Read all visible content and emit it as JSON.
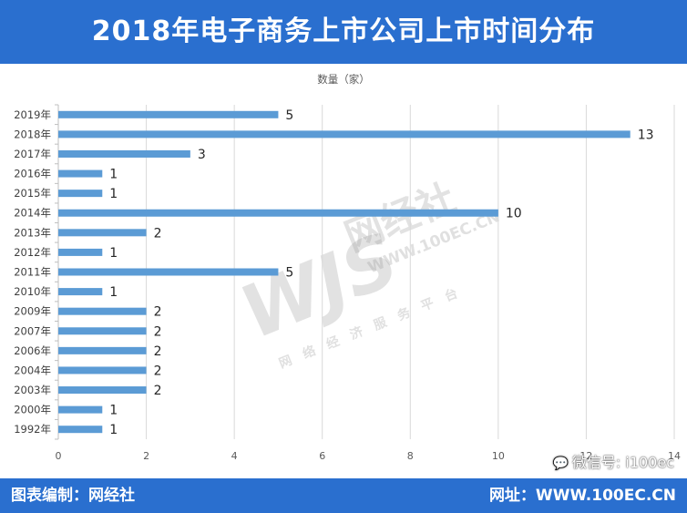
{
  "header": {
    "title": "2018年电子商务上市公司上市时间分布"
  },
  "footer": {
    "left": "图表编制：网经社",
    "right": "网址：WWW.100EC.CN"
  },
  "wechat": {
    "icon": "wechat-icon",
    "text": "微信号: i100ec"
  },
  "watermark": {
    "logo": "WJS",
    "name": "网经社",
    "url": "WWW.100EC.CN",
    "left_sub": "网络经济服务平台"
  },
  "colors": {
    "accent": "#2a6fcf",
    "bar": "#5b9bd5",
    "grid": "#d9d9d9"
  },
  "chart_data": {
    "type": "bar",
    "orientation": "horizontal",
    "series": [
      {
        "name": "数量（家）"
      }
    ],
    "categories": [
      "2019年",
      "2018年",
      "2017年",
      "2016年",
      "2015年",
      "2014年",
      "2013年",
      "2012年",
      "2011年",
      "2010年",
      "2009年",
      "2007年",
      "2006年",
      "2004年",
      "2003年",
      "2000年",
      "1992年"
    ],
    "values": [
      5,
      13,
      3,
      1,
      1,
      10,
      2,
      1,
      5,
      1,
      2,
      2,
      2,
      2,
      2,
      1,
      1
    ],
    "xlim": [
      0,
      14
    ],
    "xticks": [
      0,
      2,
      4,
      6,
      8,
      10,
      12,
      14
    ],
    "grid": "vertical",
    "legend": "top-center",
    "data_labels": true
  }
}
